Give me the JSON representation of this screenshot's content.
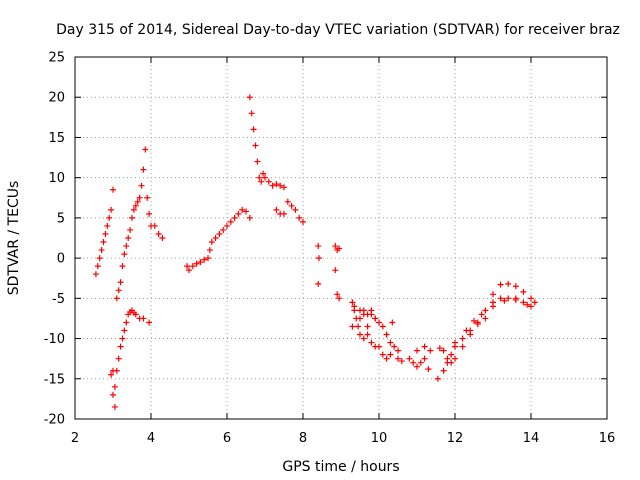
{
  "chart_data": {
    "type": "scatter",
    "title": "Day 315 of 2014, Sidereal Day-to-day VTEC variation (SDTVAR) for receiver braz",
    "xlabel": "GPS time / hours",
    "ylabel": "SDTVAR / TECUs",
    "xlim": [
      2,
      16
    ],
    "ylim": [
      -20,
      25
    ],
    "xticks": [
      2,
      4,
      6,
      8,
      10,
      12,
      14,
      16
    ],
    "yticks": [
      -20,
      -15,
      -10,
      -5,
      0,
      5,
      10,
      15,
      20,
      25
    ],
    "grid": true,
    "marker": "+",
    "marker_color": "#ff0000",
    "series": [
      {
        "name": "SDTVAR",
        "points": [
          [
            2.55,
            -2.0
          ],
          [
            2.6,
            -1.0
          ],
          [
            2.65,
            0.0
          ],
          [
            2.7,
            1.0
          ],
          [
            2.75,
            2.0
          ],
          [
            2.8,
            3.0
          ],
          [
            2.85,
            4.0
          ],
          [
            2.9,
            5.0
          ],
          [
            2.95,
            6.0
          ],
          [
            3.0,
            8.5
          ],
          [
            2.95,
            -14.5
          ],
          [
            3.0,
            -14.0
          ],
          [
            3.0,
            -17.0
          ],
          [
            3.05,
            -18.5
          ],
          [
            3.05,
            -16.0
          ],
          [
            3.1,
            -14.0
          ],
          [
            3.15,
            -12.5
          ],
          [
            3.2,
            -11.0
          ],
          [
            3.25,
            -10.0
          ],
          [
            3.3,
            -9.0
          ],
          [
            3.35,
            -8.0
          ],
          [
            3.4,
            -7.0
          ],
          [
            3.45,
            -6.7
          ],
          [
            3.5,
            -6.5
          ],
          [
            3.55,
            -6.8
          ],
          [
            3.6,
            -7.0
          ],
          [
            3.7,
            -7.5
          ],
          [
            3.8,
            -7.5
          ],
          [
            3.95,
            -8.0
          ],
          [
            3.1,
            -5.0
          ],
          [
            3.15,
            -4.0
          ],
          [
            3.2,
            -3.0
          ],
          [
            3.25,
            -1.0
          ],
          [
            3.3,
            0.5
          ],
          [
            3.35,
            1.5
          ],
          [
            3.4,
            2.5
          ],
          [
            3.45,
            3.5
          ],
          [
            3.5,
            5.0
          ],
          [
            3.55,
            6.0
          ],
          [
            3.6,
            6.5
          ],
          [
            3.65,
            7.0
          ],
          [
            3.7,
            7.5
          ],
          [
            3.75,
            9.0
          ],
          [
            3.8,
            11.0
          ],
          [
            3.85,
            13.5
          ],
          [
            3.9,
            7.5
          ],
          [
            3.95,
            5.5
          ],
          [
            4.0,
            4.0
          ],
          [
            4.1,
            4.0
          ],
          [
            4.2,
            3.0
          ],
          [
            4.3,
            2.5
          ],
          [
            4.95,
            -1.0
          ],
          [
            5.0,
            -1.5
          ],
          [
            5.1,
            -1.0
          ],
          [
            5.2,
            -0.7
          ],
          [
            5.3,
            -0.5
          ],
          [
            5.4,
            -0.2
          ],
          [
            5.5,
            0.0
          ],
          [
            5.55,
            1.0
          ],
          [
            5.6,
            2.0
          ],
          [
            5.7,
            2.5
          ],
          [
            5.8,
            3.0
          ],
          [
            5.9,
            3.5
          ],
          [
            6.0,
            4.0
          ],
          [
            6.1,
            4.5
          ],
          [
            6.2,
            5.0
          ],
          [
            6.3,
            5.5
          ],
          [
            6.4,
            6.0
          ],
          [
            6.5,
            5.8
          ],
          [
            6.6,
            5.0
          ],
          [
            6.6,
            20.0
          ],
          [
            6.65,
            18.0
          ],
          [
            6.7,
            16.0
          ],
          [
            6.75,
            14.0
          ],
          [
            6.8,
            12.0
          ],
          [
            6.85,
            10.0
          ],
          [
            6.9,
            9.5
          ],
          [
            6.95,
            10.5
          ],
          [
            7.0,
            10.0
          ],
          [
            7.1,
            9.5
          ],
          [
            7.2,
            9.0
          ],
          [
            7.3,
            9.2
          ],
          [
            7.4,
            9.0
          ],
          [
            7.5,
            8.8
          ],
          [
            7.3,
            6.0
          ],
          [
            7.4,
            5.5
          ],
          [
            7.5,
            5.5
          ],
          [
            7.6,
            7.0
          ],
          [
            7.7,
            6.5
          ],
          [
            7.8,
            6.0
          ],
          [
            7.9,
            5.0
          ],
          [
            8.0,
            4.5
          ],
          [
            8.4,
            1.5
          ],
          [
            8.42,
            0.0
          ],
          [
            8.4,
            -3.2
          ],
          [
            8.85,
            1.5
          ],
          [
            8.9,
            1.0
          ],
          [
            8.95,
            1.2
          ],
          [
            8.85,
            -1.5
          ],
          [
            8.9,
            -4.5
          ],
          [
            8.95,
            -5.0
          ],
          [
            9.3,
            -5.5
          ],
          [
            9.35,
            -6.5
          ],
          [
            9.4,
            -7.5
          ],
          [
            9.45,
            -8.5
          ],
          [
            9.5,
            -9.5
          ],
          [
            9.6,
            -10.0
          ],
          [
            9.7,
            -9.5
          ],
          [
            9.8,
            -10.5
          ],
          [
            9.9,
            -11.0
          ],
          [
            10.0,
            -11.0
          ],
          [
            10.1,
            -12.0
          ],
          [
            10.2,
            -12.5
          ],
          [
            10.3,
            -12.0
          ],
          [
            10.4,
            -11.0
          ],
          [
            10.5,
            -12.5
          ],
          [
            10.6,
            -12.8
          ],
          [
            9.3,
            -8.5
          ],
          [
            9.5,
            -7.5
          ],
          [
            9.6,
            -6.5
          ],
          [
            9.7,
            -7.0
          ],
          [
            9.8,
            -6.5
          ],
          [
            9.9,
            -7.5
          ],
          [
            10.0,
            -8.0
          ],
          [
            10.1,
            -8.5
          ],
          [
            10.2,
            -9.5
          ],
          [
            10.3,
            -10.5
          ],
          [
            10.5,
            -11.5
          ],
          [
            9.35,
            -6.0
          ],
          [
            9.5,
            -6.5
          ],
          [
            9.6,
            -7.0
          ],
          [
            9.7,
            -8.5
          ],
          [
            9.8,
            -7.0
          ],
          [
            9.9,
            -7.5
          ],
          [
            10.35,
            -8.0
          ],
          [
            10.8,
            -12.5
          ],
          [
            10.9,
            -13.0
          ],
          [
            11.0,
            -13.5
          ],
          [
            11.1,
            -13.0
          ],
          [
            11.2,
            -12.5
          ],
          [
            11.3,
            -13.8
          ],
          [
            11.35,
            -11.5
          ],
          [
            11.0,
            -11.5
          ],
          [
            11.2,
            -11.0
          ],
          [
            11.55,
            -15.0
          ],
          [
            11.7,
            -14.0
          ],
          [
            11.8,
            -13.0
          ],
          [
            11.9,
            -12.0
          ],
          [
            12.0,
            -11.0
          ],
          [
            12.2,
            -10.0
          ],
          [
            12.4,
            -9.0
          ],
          [
            12.6,
            -8.2
          ],
          [
            12.8,
            -7.5
          ],
          [
            13.0,
            -6.0
          ],
          [
            13.2,
            -5.0
          ],
          [
            13.4,
            -5.0
          ],
          [
            13.6,
            -5.2
          ],
          [
            13.8,
            -5.5
          ],
          [
            14.0,
            -6.0
          ],
          [
            11.7,
            -11.5
          ],
          [
            11.8,
            -12.5
          ],
          [
            11.9,
            -13.0
          ],
          [
            12.0,
            -12.5
          ],
          [
            12.2,
            -11.0
          ],
          [
            12.4,
            -9.5
          ],
          [
            12.6,
            -8.0
          ],
          [
            12.8,
            -6.5
          ],
          [
            13.0,
            -4.5
          ],
          [
            13.2,
            -3.3
          ],
          [
            13.4,
            -3.2
          ],
          [
            13.6,
            -3.5
          ],
          [
            13.8,
            -4.2
          ],
          [
            14.0,
            -5.0
          ],
          [
            14.1,
            -5.5
          ],
          [
            11.6,
            -11.2
          ],
          [
            12.0,
            -10.5
          ],
          [
            12.3,
            -9.0
          ],
          [
            12.5,
            -7.8
          ],
          [
            12.7,
            -7.0
          ],
          [
            13.0,
            -5.5
          ],
          [
            13.3,
            -5.3
          ],
          [
            13.6,
            -5.0
          ],
          [
            13.9,
            -5.8
          ]
        ]
      }
    ]
  }
}
